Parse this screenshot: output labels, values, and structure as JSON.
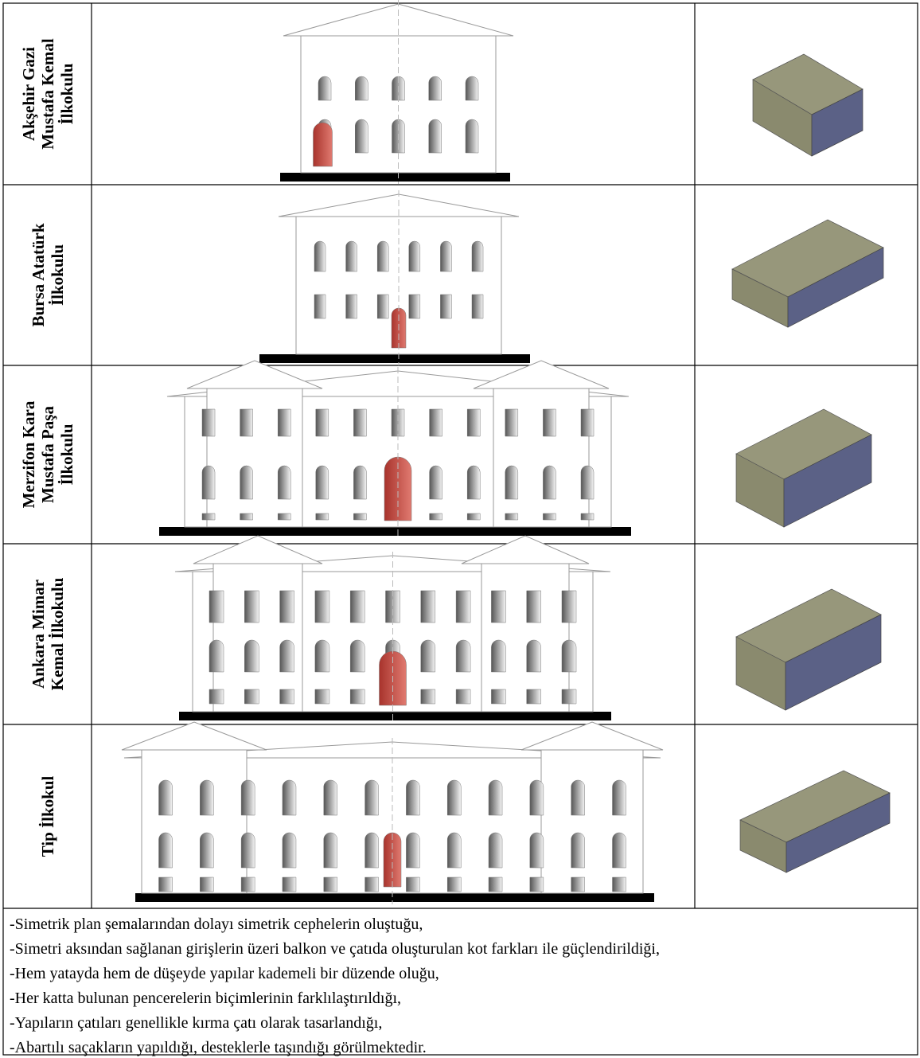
{
  "rows": [
    {
      "label": [
        "Akşehir Gazi",
        "Mustafa Kemal",
        "İlkokulu"
      ]
    },
    {
      "label": [
        "Bursa Atatürk",
        "İlkokulu"
      ]
    },
    {
      "label": [
        "Merzifon Kara",
        "Mustafa Paşa",
        "İlkokulu"
      ]
    },
    {
      "label": [
        "Ankara Mimar",
        "Kemal İlkokulu"
      ]
    },
    {
      "label": [
        "Tip İlkokul"
      ]
    }
  ],
  "notes": [
    "-Simetrik plan şemalarından dolayı simetrik cephelerin oluştuğu,",
    "-Simetri aksından sağlanan girişlerin üzeri balkon ve çatıda oluşturulan kot farkları ile güçlendirildiği,",
    "-Hem yatayda hem de düşeyde yapılar kademeli bir düzende oluğu,",
    "-Her katta bulunan pencerelerin biçimlerinin farklılaştırıldığı,",
    "-Yapıların çatıları genellikle kırma çatı olarak tasarlandığı,",
    "-Abartılı saçakların yapıldığı, desteklerle taşındığı görülmektedir."
  ]
}
